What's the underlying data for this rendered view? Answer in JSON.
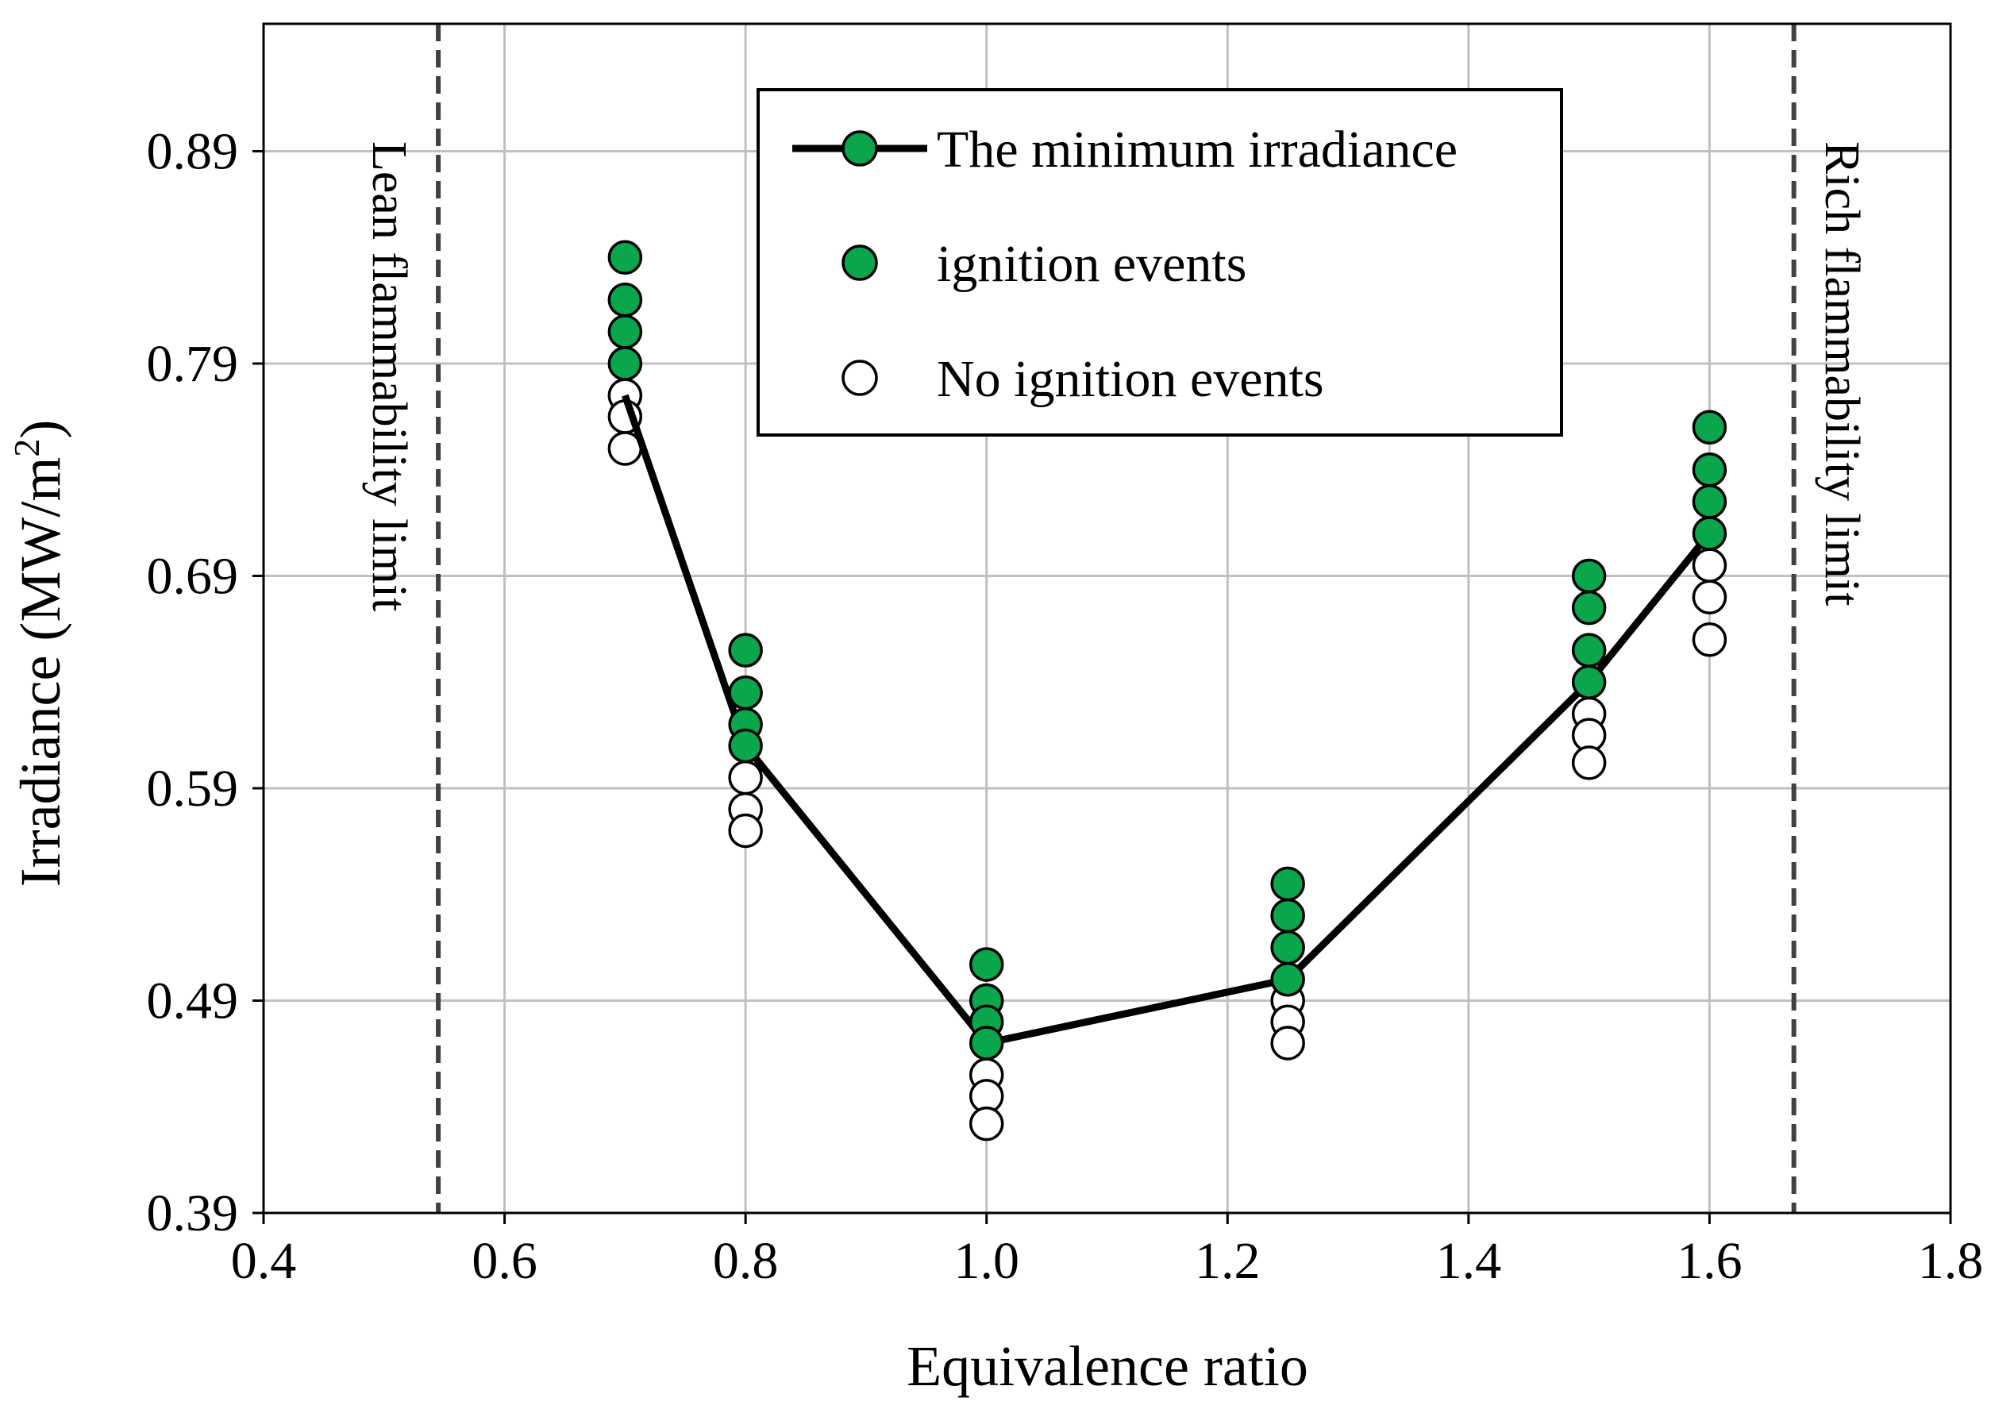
{
  "chart_data": {
    "type": "scatter",
    "title": "",
    "xlabel": "Equivalence ratio",
    "ylabel": "Irradiance (MW/m²)",
    "ylabel_parts": {
      "main": "Irradiance (MW/m",
      "sup": "2",
      "tail": ")"
    },
    "xlim": [
      0.4,
      1.8
    ],
    "ylim": [
      0.39,
      0.95
    ],
    "xticks": [
      0.4,
      0.6,
      0.8,
      1.0,
      1.2,
      1.4,
      1.6,
      1.8
    ],
    "xtick_labels": [
      "0.4",
      "0.6",
      "0.8",
      "1.0",
      "1.2",
      "1.4",
      "1.6",
      "1.8"
    ],
    "yticks": [
      0.39,
      0.49,
      0.59,
      0.69,
      0.79,
      0.89
    ],
    "ytick_labels": [
      "0.39",
      "0.49",
      "0.59",
      "0.69",
      "0.79",
      "0.89"
    ],
    "grid": true,
    "legend_position": "top-center",
    "series": [
      {
        "name": "The minimum irradiance",
        "style": "line-with-filled-markers",
        "x": [
          0.7,
          0.8,
          1.0,
          1.25,
          1.5,
          1.6
        ],
        "y": [
          0.775,
          0.61,
          0.47,
          0.5,
          0.64,
          0.71
        ]
      },
      {
        "name": "ignition events",
        "style": "filled-markers",
        "x": [
          0.7,
          0.7,
          0.7,
          0.7,
          0.8,
          0.8,
          0.8,
          0.8,
          1.0,
          1.0,
          1.0,
          1.0,
          1.25,
          1.25,
          1.25,
          1.25,
          1.5,
          1.5,
          1.5,
          1.5,
          1.6,
          1.6,
          1.6,
          1.6
        ],
        "y": [
          0.84,
          0.82,
          0.805,
          0.79,
          0.655,
          0.635,
          0.62,
          0.61,
          0.507,
          0.49,
          0.48,
          0.47,
          0.545,
          0.53,
          0.515,
          0.5,
          0.69,
          0.675,
          0.655,
          0.64,
          0.76,
          0.74,
          0.725,
          0.71
        ]
      },
      {
        "name": "No ignition events",
        "style": "hollow-markers",
        "x": [
          0.7,
          0.7,
          0.7,
          0.8,
          0.8,
          0.8,
          1.0,
          1.0,
          1.0,
          1.25,
          1.25,
          1.25,
          1.5,
          1.5,
          1.5,
          1.6,
          1.6,
          1.6
        ],
        "y": [
          0.775,
          0.765,
          0.75,
          0.595,
          0.58,
          0.57,
          0.455,
          0.445,
          0.432,
          0.49,
          0.48,
          0.47,
          0.625,
          0.615,
          0.602,
          0.695,
          0.68,
          0.66
        ]
      }
    ],
    "reference_lines": [
      {
        "name": "Lean flammability limit",
        "x": 0.545,
        "label": "Lean flammability limit"
      },
      {
        "name": "Rich flammability limit",
        "x": 1.67,
        "label": "Rich flammability limit"
      }
    ],
    "colors": {
      "ignition": "#0aa64b",
      "line": "#000000",
      "grid": "#c0c0c0",
      "limit": "#404040"
    }
  }
}
